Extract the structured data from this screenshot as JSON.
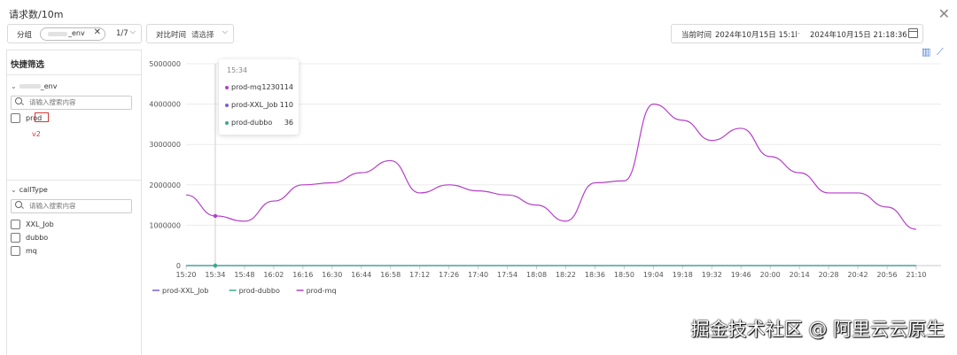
{
  "header": {
    "title": "请求数/10m",
    "close_icon": "close-icon"
  },
  "filter_group": {
    "label": "分组",
    "tag_value": "_env",
    "count": "1/7"
  },
  "compare": {
    "label": "对比时间",
    "placeholder": "请选择"
  },
  "time_range": {
    "label": "当前时间",
    "start": "2024年10月15日 15:1l",
    "separator": "-",
    "end": "2024年10月15日 21:18:36"
  },
  "sidebar": {
    "title": "快捷筛选",
    "group1": {
      "name": "_env",
      "search_placeholder": "请输入搜索内容",
      "items": [
        {
          "label": "prod"
        }
      ],
      "annotation": "v2"
    },
    "group2": {
      "name": "callType",
      "search_placeholder": "请输入搜索内容",
      "items": [
        {
          "label": "XXL_Job"
        },
        {
          "label": "dubbo"
        },
        {
          "label": "mq"
        }
      ]
    }
  },
  "tooltip": {
    "time": "15:34",
    "rows": [
      {
        "name": "prod-mq",
        "value": "1230114",
        "color": "#b43fc8"
      },
      {
        "name": "prod-XXL_Job",
        "value": "110",
        "color": "#7c5cd6"
      },
      {
        "name": "prod-dubbo",
        "value": "36",
        "color": "#3aa88b"
      }
    ]
  },
  "watermark": "掘金技术社区 @ 阿里云云原生",
  "chart_data": {
    "type": "line",
    "x": [
      "15:20",
      "15:34",
      "15:48",
      "16:02",
      "16:16",
      "16:30",
      "16:44",
      "16:58",
      "17:12",
      "17:26",
      "17:40",
      "17:54",
      "18:08",
      "18:22",
      "18:36",
      "18:50",
      "19:04",
      "19:18",
      "19:32",
      "19:46",
      "20:00",
      "20:14",
      "20:28",
      "20:42",
      "20:56",
      "21:10"
    ],
    "yticks": [
      "0",
      "1000000",
      "2000000",
      "3000000",
      "4000000",
      "5000000"
    ],
    "ylim": [
      0,
      5000000
    ],
    "series": [
      {
        "name": "prod-mq",
        "color": "#b43fc8",
        "values": [
          1750000,
          1230114,
          1100000,
          1600000,
          2000000,
          2050000,
          2300000,
          2600000,
          1800000,
          2000000,
          1850000,
          1750000,
          1500000,
          1100000,
          2050000,
          2100000,
          4000000,
          3600000,
          3100000,
          3400000,
          2700000,
          2300000,
          1800000,
          1800000,
          1450000,
          900000
        ]
      },
      {
        "name": "prod-XXL_Job",
        "color": "#7c5cd6",
        "values": [
          110,
          110,
          110,
          110,
          110,
          110,
          110,
          110,
          110,
          110,
          110,
          110,
          110,
          110,
          110,
          110,
          110,
          110,
          110,
          110,
          110,
          110,
          110,
          110,
          110,
          110
        ]
      },
      {
        "name": "prod-dubbo",
        "color": "#3aa88b",
        "values": [
          36,
          36,
          36,
          36,
          36,
          36,
          36,
          36,
          36,
          36,
          36,
          36,
          36,
          36,
          36,
          36,
          36,
          36,
          36,
          36,
          36,
          36,
          36,
          36,
          36,
          36
        ]
      }
    ],
    "legend": [
      {
        "name": "prod-XXL_Job",
        "color": "#7c5cd6"
      },
      {
        "name": "prod-dubbo",
        "color": "#3aa88b"
      },
      {
        "name": "prod-mq",
        "color": "#b43fc8"
      }
    ],
    "legend_position": "bottom-left",
    "grid": true
  }
}
